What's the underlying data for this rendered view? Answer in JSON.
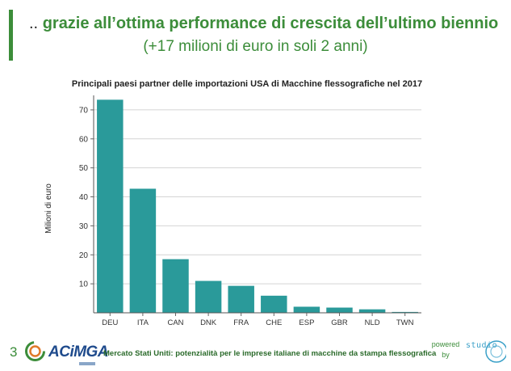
{
  "header": {
    "prefix": "..",
    "title": "grazie all’ottima performance di crescita dell’ultimo biennio",
    "subtitle": "(+17 milioni di euro in soli 2 anni)"
  },
  "chart_data": {
    "type": "bar",
    "title": "Principali paesi partner delle importazioni USA di Macchine flessografiche nel 2017",
    "xlabel": "",
    "ylabel": "Milioni di euro",
    "categories": [
      "DEU",
      "ITA",
      "CAN",
      "DNK",
      "FRA",
      "CHE",
      "ESP",
      "GBR",
      "NLD",
      "TWN"
    ],
    "values": [
      73.5,
      42.8,
      18.5,
      11,
      9.3,
      5.9,
      2.1,
      1.8,
      1.2,
      0.3
    ],
    "ylim": [
      0,
      75
    ],
    "yticks": [
      10,
      20,
      30,
      40,
      50,
      60,
      70
    ],
    "grid": true,
    "bar_color": "#2a9a9a"
  },
  "footer": {
    "page_number": "3",
    "brand": "ACiMGA",
    "caption": "Mercato Stati Uniti: potenzialità per le imprese italiane di macchine da stampa flessografica",
    "powered_by": "powered by",
    "partner_logo": "studio"
  }
}
